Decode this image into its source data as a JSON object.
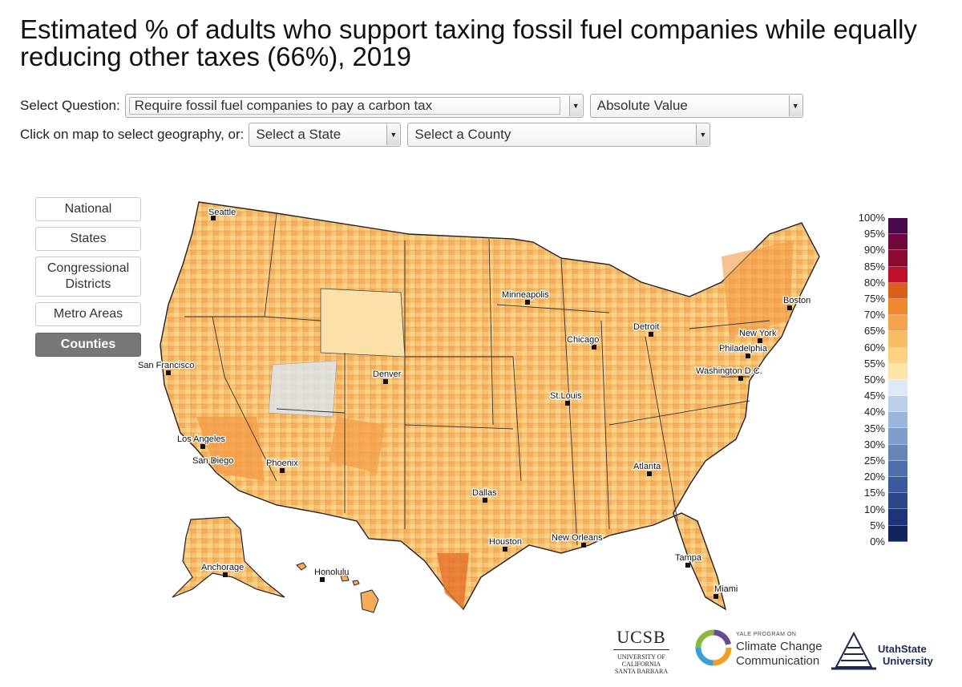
{
  "title": "Estimated % of adults who support taxing fossil fuel companies while equally reducing other taxes (66%), 2019",
  "controls": {
    "question_label": "Select Question:",
    "question_value": "Require fossil fuel companies to pay a carbon tax",
    "measure_value": "Absolute Value",
    "geo_label": "Click on map to select geography, or:",
    "state_value": "Select a State",
    "county_value": "Select a County"
  },
  "geo_buttons": [
    {
      "label": "National",
      "active": false
    },
    {
      "label": "States",
      "active": false
    },
    {
      "label": "Congressional Districts",
      "active": false
    },
    {
      "label": "Metro Areas",
      "active": false
    },
    {
      "label": "Counties",
      "active": true
    }
  ],
  "legend": {
    "labels": [
      "100%",
      "95%",
      "90%",
      "85%",
      "80%",
      "75%",
      "70%",
      "65%",
      "60%",
      "55%",
      "50%",
      "45%",
      "40%",
      "35%",
      "30%",
      "25%",
      "20%",
      "15%",
      "10%",
      "5%",
      "0%"
    ],
    "colors": [
      "#4a0a4a",
      "#6e0a3e",
      "#8c0a32",
      "#c0102a",
      "#d9601a",
      "#f08a30",
      "#f6a44a",
      "#f8bb66",
      "#fbd184",
      "#fde7a8",
      "#dfe9f5",
      "#bcd0e8",
      "#9bb6da",
      "#7e9dcb",
      "#6585bb",
      "#4e6ead",
      "#3a5a9e",
      "#2a478c",
      "#1d3578",
      "#122460"
    ]
  },
  "cities": [
    "Seattle",
    "San Francisco",
    "Los Angeles",
    "San Diego",
    "Phoenix",
    "Denver",
    "Minneapolis",
    "Chicago",
    "Detroit",
    "St.Louis",
    "Dallas",
    "Houston",
    "New Orleans",
    "Atlanta",
    "Tampa",
    "Miami",
    "Washington D.C.",
    "Philadelphia",
    "New York",
    "Boston",
    "Anchorage",
    "Honolulu"
  ],
  "logos": {
    "ucsb": "UCSB",
    "ucsb_sub1": "UNIVERSITY OF CALIFORNIA",
    "ucsb_sub2": "SANTA BARBARA",
    "yale_top": "YALE PROGRAM ON",
    "yale_1": "Climate Change",
    "yale_2": "Communication",
    "utah_1": "UtahState",
    "utah_2": "University"
  }
}
